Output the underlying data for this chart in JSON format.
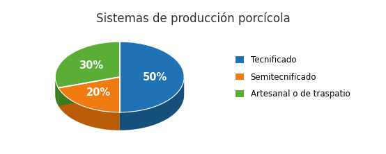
{
  "title": "Sistemas de producción porcícola",
  "slices": [
    50,
    20,
    30
  ],
  "labels": [
    "50%",
    "20%",
    "30%"
  ],
  "colors": [
    "#2171B5",
    "#F07B10",
    "#5AAE35"
  ],
  "shadow_colors": [
    "#14507A",
    "#B85C08",
    "#3A7A20"
  ],
  "legend_labels": [
    "Tecnificado",
    "Semitecnificado",
    "Artesanal o de traspatio"
  ],
  "background_color": "#ffffff",
  "title_fontsize": 12,
  "label_fontsize": 10.5
}
